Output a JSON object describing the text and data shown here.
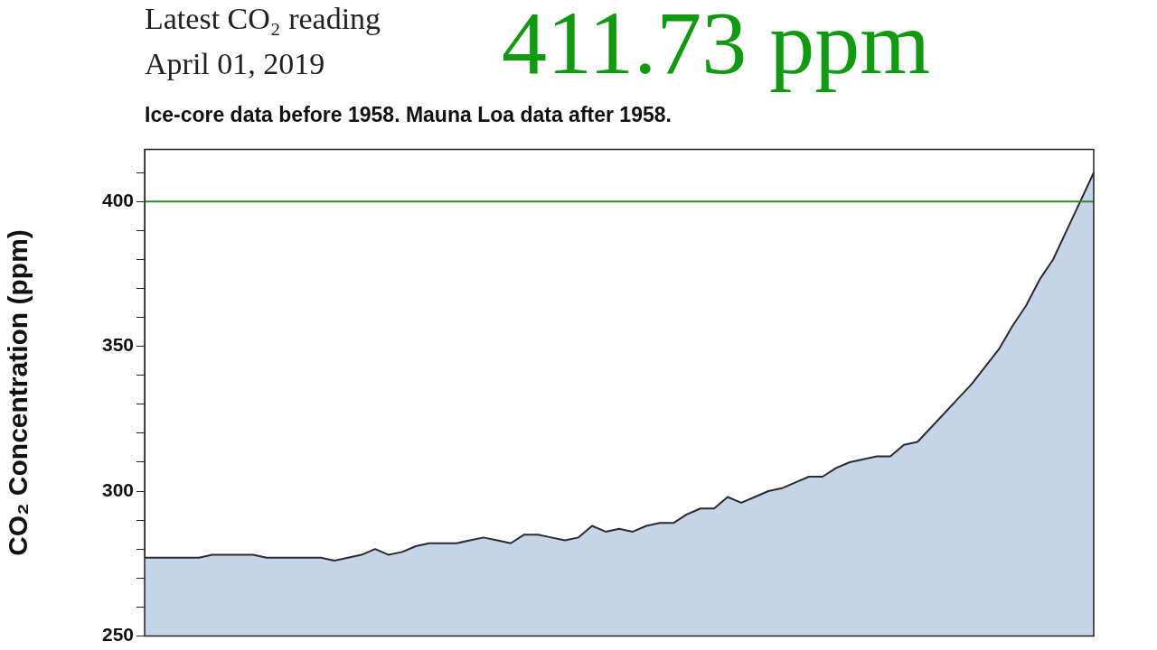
{
  "chart_data": {
    "type": "area",
    "title": "Latest CO₂ reading",
    "subtitle": "Ice-core data before 1958. Mauna Loa data after 1958.",
    "ylabel": "CO₂ Concentration (ppm)",
    "annotations": [
      "April 01, 2019",
      "411.73 ppm"
    ],
    "categories": [
      null,
      null,
      null,
      null,
      null,
      null,
      null,
      null,
      null,
      null,
      null,
      null,
      null,
      null,
      null,
      null,
      null,
      null,
      null,
      null,
      null,
      null,
      null,
      null,
      null,
      null,
      null,
      null,
      null,
      null,
      null,
      null,
      null,
      null,
      null,
      null,
      null,
      null,
      null,
      null,
      null,
      null,
      null,
      null,
      null,
      null,
      null,
      null,
      null,
      null,
      null,
      null,
      null,
      null,
      null,
      null,
      null,
      null,
      null,
      null,
      null,
      null,
      null,
      null,
      null,
      null,
      null,
      null,
      null,
      null,
      null
    ],
    "series": [
      {
        "color": "#c4d4e9",
        "values": [
          277,
          277,
          277,
          277,
          277,
          278,
          278,
          278,
          278,
          277,
          277,
          277,
          277,
          277,
          276,
          277,
          278,
          280,
          278,
          279,
          281,
          282,
          282,
          282,
          283,
          284,
          283,
          282,
          285,
          285,
          284,
          283,
          284,
          288,
          286,
          287,
          286,
          288,
          289,
          289,
          292,
          294,
          294,
          298,
          296,
          298,
          300,
          301,
          303,
          305,
          305,
          308,
          310,
          311,
          312,
          312,
          316,
          317,
          322,
          327,
          332,
          337,
          343,
          349,
          357,
          364,
          373,
          380,
          390,
          400,
          410
        ]
      }
    ],
    "ylim": [
      250,
      418
    ],
    "yticks": [
      250,
      {
        "value": 260,
        "label": null
      },
      {
        "value": 270,
        "label": null
      },
      {
        "value": 280,
        "label": null
      },
      {
        "value": 290,
        "label": null
      },
      300,
      {
        "value": 310,
        "label": null
      },
      {
        "value": 320,
        "label": null
      },
      {
        "value": 330,
        "label": null
      },
      {
        "value": 340,
        "label": null
      },
      350,
      {
        "value": 360,
        "label": null
      },
      {
        "value": 370,
        "label": null
      },
      {
        "value": 380,
        "label": null
      },
      {
        "value": 390,
        "label": null
      },
      400,
      {
        "value": 410,
        "label": null
      }
    ],
    "ref_lines": [
      {
        "axis": "y",
        "value": 400,
        "color": "#2e8b2e"
      }
    ],
    "tick_labels": "y",
    "legend": false,
    "grid": false,
    "marker": "none"
  }
}
